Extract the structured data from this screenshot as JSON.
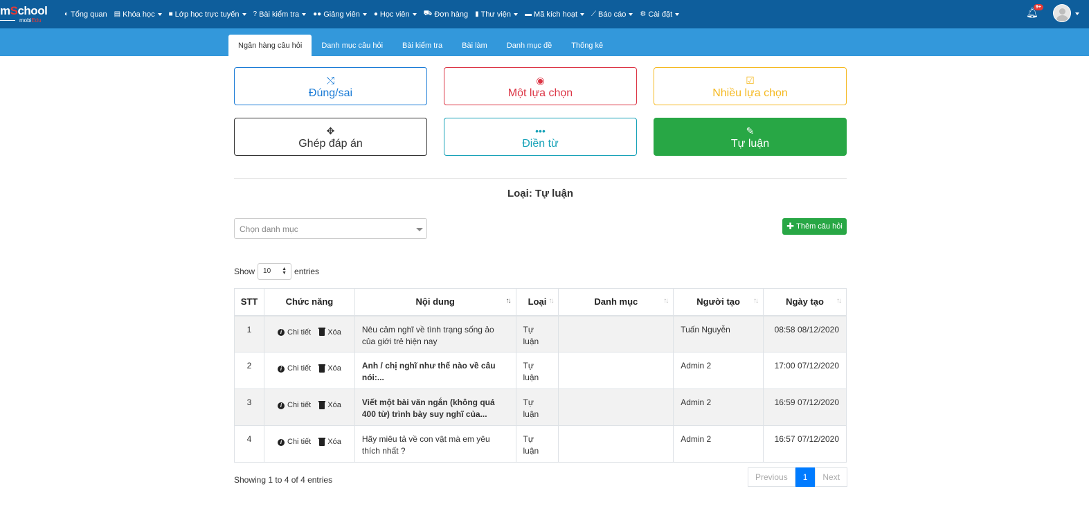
{
  "brand": {
    "logo_main": "mSchool",
    "logo_sub": "mobiEdu"
  },
  "nav": [
    {
      "label": "Tổng quan",
      "icon": "dashboard-icon",
      "caret": false
    },
    {
      "label": "Khóa học",
      "icon": "list-icon",
      "caret": true
    },
    {
      "label": "Lớp học trực tuyến",
      "icon": "video-icon",
      "caret": true
    },
    {
      "label": "Bài kiểm tra",
      "icon": "question-circle-icon",
      "caret": true
    },
    {
      "label": "Giảng viên",
      "icon": "users-icon",
      "caret": true
    },
    {
      "label": "Học viên",
      "icon": "user-icon",
      "caret": true
    },
    {
      "label": "Đơn hàng",
      "icon": "cart-icon",
      "caret": false
    },
    {
      "label": "Thư viện",
      "icon": "book-icon",
      "caret": true
    },
    {
      "label": "Mã kích hoạt",
      "icon": "card-icon",
      "caret": true
    },
    {
      "label": "Báo cáo",
      "icon": "chart-icon",
      "caret": true
    },
    {
      "label": "Cài đặt",
      "icon": "gears-icon",
      "caret": true
    }
  ],
  "notifications": {
    "count": "9+"
  },
  "tabs": [
    "Ngân hàng câu hỏi",
    "Danh mục câu hỏi",
    "Bài kiểm tra",
    "Bài làm",
    "Danh mục đề",
    "Thống kê"
  ],
  "types": [
    {
      "label": "Đúng/sai",
      "icon": "shuffle-icon",
      "glyph": "⤭"
    },
    {
      "label": "Một lựa chọn",
      "icon": "dot-circle-icon",
      "glyph": "◉"
    },
    {
      "label": "Nhiều lựa chọn",
      "icon": "check-square-icon",
      "glyph": "☑"
    },
    {
      "label": "Ghép đáp án",
      "icon": "arrows-alt-icon",
      "glyph": "✥"
    },
    {
      "label": "Điền từ",
      "icon": "ellipsis-icon",
      "glyph": "•••"
    },
    {
      "label": "Tự luận",
      "icon": "edit-icon",
      "glyph": "✎"
    }
  ],
  "type_title": "Loại: Tự luận",
  "category_placeholder": "Chọn danh mục",
  "add_button": "Thêm câu hỏi",
  "length": {
    "show": "Show",
    "value": "10",
    "entries": "entries"
  },
  "table": {
    "headers": [
      "STT",
      "Chức năng",
      "Nội dung",
      "Loại",
      "Danh mục",
      "Người tạo",
      "Ngày tạo"
    ],
    "action_detail": "Chi tiết",
    "action_delete": "Xóa",
    "rows": [
      {
        "stt": "1",
        "content": "Nêu cảm nghĩ về tình trạng sống ảo của giới trẻ hiện nay",
        "bold": false,
        "type": "Tự luận",
        "category": "",
        "creator": "Tuấn Nguyễn",
        "date": "08:58 08/12/2020"
      },
      {
        "stt": "2",
        "content": "Anh / chị nghĩ như thế nào về câu nói:...",
        "bold": true,
        "type": "Tự luận",
        "category": "",
        "creator": "Admin 2",
        "date": "17:00 07/12/2020"
      },
      {
        "stt": "3",
        "content": " Viết một bài văn ngắn (không quá 400 từ) trình bày suy nghĩ của...",
        "bold": true,
        "type": "Tự luận",
        "category": "",
        "creator": "Admin 2",
        "date": "16:59 07/12/2020"
      },
      {
        "stt": "4",
        "content": "Hãy miêu tả về con vật mà em yêu thích nhất ?",
        "bold": false,
        "type": "Tự luận",
        "category": "",
        "creator": "Admin 2",
        "date": "16:57 07/12/2020"
      }
    ]
  },
  "info": "Showing 1 to 4 of 4 entries",
  "pagination": {
    "previous": "Previous",
    "current": "1",
    "next": "Next"
  },
  "colors": {
    "navbar": "#0e5e9c",
    "subbar": "#3398db",
    "green": "#28a745",
    "blue": "#1a7bd6",
    "red": "#dc3545",
    "yellow": "#f5b921",
    "cyan": "#17a2b8"
  }
}
